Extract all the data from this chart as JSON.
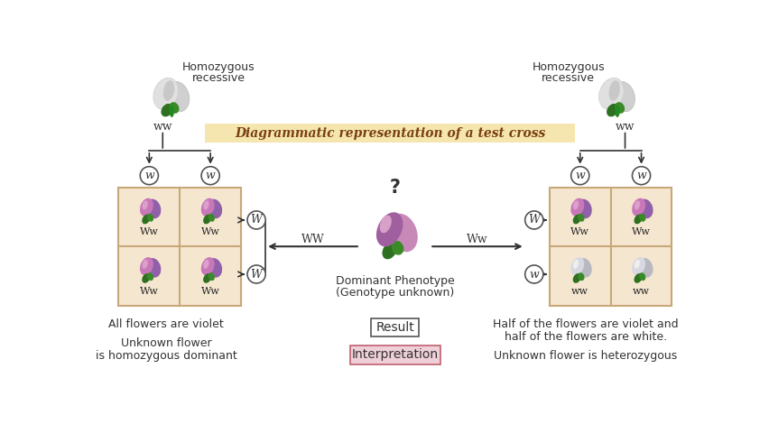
{
  "title": "Diagrammatic representation of a test cross",
  "title_bg": "#f5e6b0",
  "bg_color": "#ffffff",
  "left_label1": "Homozygous",
  "left_label2": "recessive",
  "right_label1": "Homozygous",
  "right_label2": "recessive",
  "left_ww": "ww",
  "right_ww": "ww",
  "center_question": "?",
  "center_label1": "Dominant Phenotype",
  "center_label2": "(Genotype unknown)",
  "center_arrow_left": "WW",
  "center_arrow_right": "Ww",
  "result_label": "Result",
  "interp_label": "Interpretation",
  "result_bg": "#ffffff",
  "interp_bg": "#f0d0d8",
  "result_edge": "#555555",
  "interp_edge": "#c06070",
  "bottom_left1": "All flowers are violet",
  "bottom_left2": "Unknown flower",
  "bottom_left3": "is homozygous dominant",
  "bottom_right1": "Half of the flowers are violet and",
  "bottom_right2": "half of the flowers are white.",
  "bottom_right3": "Unknown flower is heterozygous",
  "grid_color": "#c8a878",
  "grid_bg": "#f5e6d0",
  "text_color": "#2a2a2a",
  "arrow_color": "#333333",
  "circle_color": "#ffffff",
  "circle_edge": "#555555",
  "petal_violet1": "#b868a8",
  "petal_violet2": "#9050a0",
  "petal_violet_center": "#c890c0",
  "petal_white1": "#c8c8c8",
  "petal_white2": "#e0e0e0",
  "petal_white_center": "#f0f0f0",
  "leaf_green": "#3a7a28",
  "leaf_green2": "#4a9030",
  "top_petal1": "#d0d0d0",
  "top_petal2": "#e8e8e8",
  "top_petal_center": "#d8d8d8"
}
